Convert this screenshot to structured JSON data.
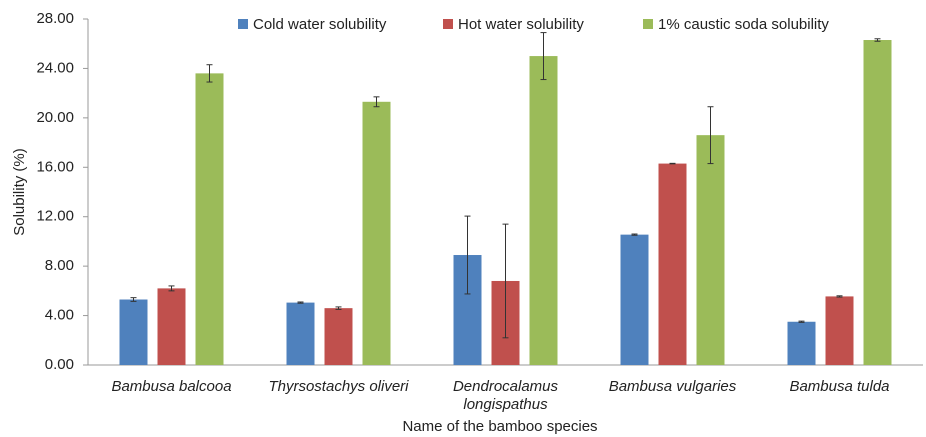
{
  "chart_data": {
    "type": "bar",
    "x_label": "Name of the bamboo species",
    "y_label": "Solubility (%)",
    "categories": [
      "Bambusa balcooa",
      "Thyrsostachys oliveri",
      "Dendrocalamus longispathus",
      "Bambusa vulgaries",
      "Bambusa tulda"
    ],
    "series": [
      {
        "name": "Cold water solubility",
        "color": "#4f81bd",
        "values": [
          5.3,
          5.05,
          8.9,
          10.55,
          3.5
        ],
        "errors": [
          0.15,
          0.05,
          3.15,
          0.05,
          0.05
        ]
      },
      {
        "name": "Hot water solubility",
        "color": "#c0504d",
        "values": [
          6.2,
          4.6,
          6.8,
          16.3,
          5.55
        ],
        "errors": [
          0.2,
          0.1,
          4.6,
          0.02,
          0.05
        ]
      },
      {
        "name": "1% caustic soda solubility",
        "color": "#9bbb59",
        "values": [
          23.6,
          21.3,
          25.0,
          18.6,
          26.3
        ],
        "errors": [
          0.7,
          0.4,
          1.9,
          2.3,
          0.1
        ]
      }
    ],
    "ylim": [
      0,
      28
    ],
    "yticks": [
      {
        "value": 0,
        "label": "0.00"
      },
      {
        "value": 4,
        "label": "4.00"
      },
      {
        "value": 8,
        "label": "8.00"
      },
      {
        "value": 12,
        "label": "12.00"
      },
      {
        "value": 16,
        "label": "16.00"
      },
      {
        "value": 20,
        "label": "20.00"
      },
      {
        "value": 24,
        "label": "24.00"
      },
      {
        "value": 28,
        "label": "28.00"
      }
    ],
    "grid": false,
    "legend": "top"
  }
}
